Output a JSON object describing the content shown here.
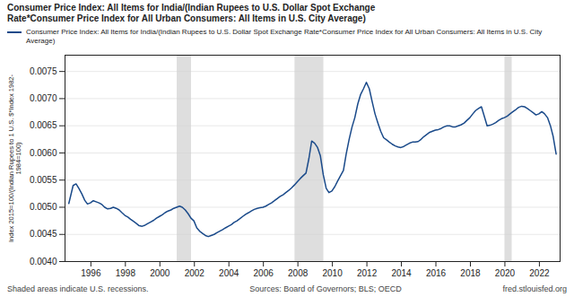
{
  "chart_data": {
    "type": "line",
    "title": "Consumer Price Index: All Items for India/(Indian Rupees to U.S. Dollar Spot Exchange\nRate*Consumer Price Index for All Urban Consumers: All Items in U.S. City Average)",
    "ylabel": "Index 2015=100/(Indian Rupees to 1 U.S. $*Index 1982-\n1984=100)",
    "x": [
      1994.72,
      1994.97,
      1995.14,
      1995.3,
      1995.47,
      1995.64,
      1995.8,
      1995.97,
      1996.14,
      1996.3,
      1996.47,
      1996.64,
      1996.8,
      1996.97,
      1997.14,
      1997.3,
      1997.47,
      1997.64,
      1997.8,
      1997.97,
      1998.14,
      1998.3,
      1998.47,
      1998.64,
      1998.8,
      1998.97,
      1999.14,
      1999.3,
      1999.47,
      1999.64,
      1999.8,
      1999.97,
      2000.14,
      2000.3,
      2000.47,
      2000.64,
      2000.8,
      2000.97,
      2001.14,
      2001.3,
      2001.47,
      2001.64,
      2001.8,
      2001.97,
      2002.14,
      2002.3,
      2002.47,
      2002.64,
      2002.8,
      2002.97,
      2003.14,
      2003.3,
      2003.47,
      2003.64,
      2003.8,
      2003.97,
      2004.14,
      2004.3,
      2004.47,
      2004.64,
      2004.8,
      2004.97,
      2005.14,
      2005.3,
      2005.47,
      2005.64,
      2005.8,
      2005.97,
      2006.14,
      2006.3,
      2006.47,
      2006.64,
      2006.8,
      2006.97,
      2007.14,
      2007.3,
      2007.47,
      2007.64,
      2007.8,
      2007.97,
      2008.14,
      2008.3,
      2008.47,
      2008.64,
      2008.8,
      2008.97,
      2009.14,
      2009.3,
      2009.47,
      2009.64,
      2009.8,
      2009.97,
      2010.14,
      2010.3,
      2010.47,
      2010.64,
      2010.8,
      2010.97,
      2011.14,
      2011.3,
      2011.47,
      2011.64,
      2011.8,
      2011.97,
      2012.14,
      2012.3,
      2012.47,
      2012.64,
      2012.8,
      2012.97,
      2013.14,
      2013.3,
      2013.47,
      2013.64,
      2013.8,
      2013.97,
      2014.14,
      2014.3,
      2014.47,
      2014.64,
      2014.8,
      2014.97,
      2015.14,
      2015.3,
      2015.47,
      2015.64,
      2015.8,
      2015.97,
      2016.14,
      2016.3,
      2016.47,
      2016.64,
      2016.8,
      2016.97,
      2017.14,
      2017.3,
      2017.47,
      2017.64,
      2017.8,
      2017.97,
      2018.14,
      2018.3,
      2018.47,
      2018.64,
      2018.8,
      2018.97,
      2019.14,
      2019.3,
      2019.47,
      2019.64,
      2019.8,
      2019.97,
      2020.14,
      2020.3,
      2020.47,
      2020.64,
      2020.8,
      2020.97,
      2021.14,
      2021.3,
      2021.47,
      2021.64,
      2021.8,
      2021.97,
      2022.14,
      2022.3,
      2022.47,
      2022.64,
      2022.8,
      2022.97
    ],
    "series": [
      {
        "name": "Consumer Price Index: All Items for India/(Indian Rupees to U.S. Dollar Spot Exchange Rate*Consumer Price Index for All Urban Consumers: All Items in U.S. City Average)",
        "color": "#1a4a8a",
        "values": [
          0.00507,
          0.0054,
          0.00543,
          0.00535,
          0.00525,
          0.00513,
          0.00506,
          0.00508,
          0.00512,
          0.0051,
          0.00508,
          0.00505,
          0.005,
          0.00497,
          0.00498,
          0.005,
          0.00498,
          0.00495,
          0.0049,
          0.00485,
          0.00482,
          0.00478,
          0.00474,
          0.0047,
          0.00466,
          0.00465,
          0.00467,
          0.0047,
          0.00473,
          0.00476,
          0.0048,
          0.00483,
          0.00486,
          0.0049,
          0.00493,
          0.00495,
          0.00498,
          0.005,
          0.00502,
          0.005,
          0.00495,
          0.00488,
          0.0048,
          0.00475,
          0.00462,
          0.00456,
          0.00452,
          0.00448,
          0.00446,
          0.00448,
          0.0045,
          0.00453,
          0.00456,
          0.00459,
          0.00462,
          0.00465,
          0.00468,
          0.00472,
          0.00475,
          0.00479,
          0.00483,
          0.00487,
          0.0049,
          0.00493,
          0.00496,
          0.00498,
          0.00499,
          0.005,
          0.00502,
          0.00505,
          0.00508,
          0.00512,
          0.00516,
          0.0052,
          0.00523,
          0.00527,
          0.00531,
          0.00536,
          0.00541,
          0.00547,
          0.00553,
          0.00558,
          0.00563,
          0.0059,
          0.00622,
          0.00618,
          0.0061,
          0.00595,
          0.0056,
          0.00535,
          0.00527,
          0.0053,
          0.00538,
          0.00548,
          0.00558,
          0.00568,
          0.00598,
          0.00625,
          0.00648,
          0.00665,
          0.0069,
          0.00708,
          0.00718,
          0.0073,
          0.00718,
          0.00695,
          0.00672,
          0.00655,
          0.0064,
          0.00628,
          0.00624,
          0.0062,
          0.00616,
          0.00613,
          0.00611,
          0.0061,
          0.00612,
          0.00615,
          0.00618,
          0.0062,
          0.0062,
          0.00621,
          0.00625,
          0.0063,
          0.00634,
          0.00638,
          0.0064,
          0.00642,
          0.00643,
          0.00645,
          0.00648,
          0.0065,
          0.0065,
          0.00648,
          0.00648,
          0.0065,
          0.00652,
          0.00655,
          0.0066,
          0.00665,
          0.00672,
          0.00678,
          0.00682,
          0.00685,
          0.00668,
          0.0065,
          0.00651,
          0.00653,
          0.00656,
          0.0066,
          0.00663,
          0.00665,
          0.00668,
          0.00672,
          0.00676,
          0.0068,
          0.00684,
          0.00686,
          0.00685,
          0.00682,
          0.00678,
          0.00674,
          0.0067,
          0.00672,
          0.00676,
          0.00672,
          0.00665,
          0.0065,
          0.0063,
          0.00598
        ]
      }
    ],
    "xlim": [
      1994.5,
      2023.2
    ],
    "ylim": [
      0.004,
      0.0078
    ],
    "xticks": [
      1996,
      1998,
      2000,
      2002,
      2004,
      2006,
      2008,
      2010,
      2012,
      2014,
      2016,
      2018,
      2020,
      2022
    ],
    "yticks": [
      {
        "value": 0.004,
        "label": "0.0040"
      },
      {
        "value": 0.0045,
        "label": "0.0045"
      },
      {
        "value": 0.005,
        "label": "0.0050"
      },
      {
        "value": 0.0055,
        "label": "0.0055"
      },
      {
        "value": 0.006,
        "label": "0.0060"
      },
      {
        "value": 0.0065,
        "label": "0.0065"
      },
      {
        "value": 0.007,
        "label": "0.0070"
      },
      {
        "value": 0.0075,
        "label": "0.0075"
      }
    ],
    "grid": true,
    "legend": "top",
    "shaded": {
      "ranges": [
        [
          2001.0,
          2001.83
        ],
        [
          2007.83,
          2009.5
        ],
        [
          2020.0,
          2020.42
        ]
      ],
      "color": "#d0d0d0"
    },
    "annotations": [
      "Shaded areas indicate U.S. recessions.",
      "Sources: Board of Governors; BLS; OECD",
      "fred.stlouisfed.org"
    ]
  }
}
